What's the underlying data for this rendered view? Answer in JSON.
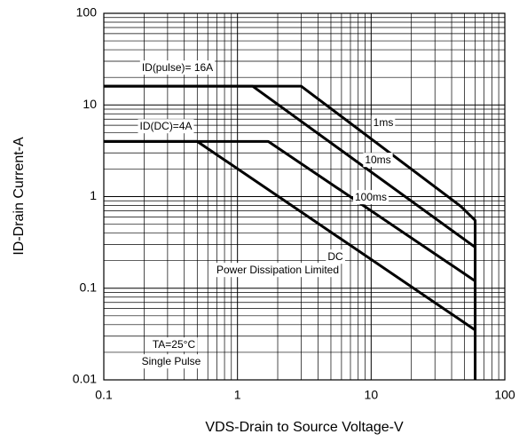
{
  "chart_data": {
    "type": "line",
    "log_x": true,
    "log_y": true,
    "grid": true,
    "xlabel": "VDS-Drain to Source Voltage-V",
    "ylabel": "ID-Drain Current-A",
    "xlim": [
      0.1,
      100
    ],
    "ylim": [
      0.01,
      100
    ],
    "xticks": [
      0.1,
      1,
      10,
      100
    ],
    "yticks": [
      0.01,
      0.1,
      1,
      10,
      100
    ],
    "series": [
      {
        "name": "1ms",
        "color": "#000000",
        "x": [
          0.1,
          3,
          47,
          60,
          60
        ],
        "values": [
          16,
          16,
          0.78,
          0.55,
          0.01
        ]
      },
      {
        "name": "10ms",
        "color": "#000000",
        "x": [
          0.1,
          1.3,
          60
        ],
        "values": [
          16,
          16,
          0.28
        ]
      },
      {
        "name": "100ms",
        "color": "#000000",
        "x": [
          0.1,
          1.7,
          60
        ],
        "values": [
          4,
          4,
          0.12
        ]
      },
      {
        "name": "DC",
        "color": "#000000",
        "x": [
          0.1,
          0.5,
          60
        ],
        "values": [
          4,
          4,
          0.035
        ]
      }
    ],
    "annotations": [
      "ID(pulse)= 16A",
      "ID(DC)=4A",
      "Power Dissipation Limited",
      "TA=25°C",
      "Single Pulse"
    ]
  }
}
